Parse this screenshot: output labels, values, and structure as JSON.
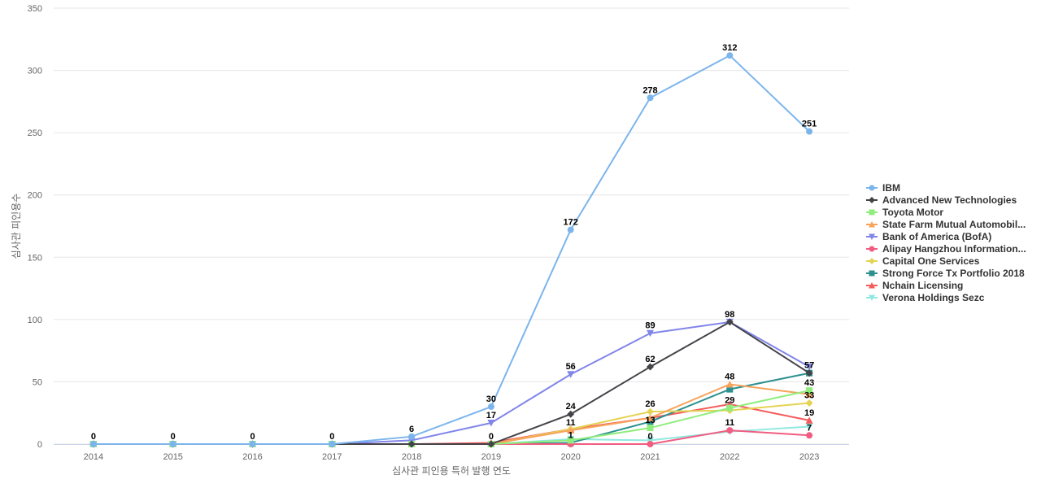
{
  "chart_data": {
    "type": "line",
    "title": "",
    "xlabel": "심사관 피인용 특허 발행 연도",
    "ylabel": "심사관 피인용수",
    "x": [
      "2014",
      "2015",
      "2016",
      "2017",
      "2018",
      "2019",
      "2020",
      "2021",
      "2022",
      "2023"
    ],
    "yticks": [
      0,
      50,
      100,
      150,
      200,
      250,
      300,
      350
    ],
    "ylim": [
      0,
      350
    ],
    "grid": true,
    "legend_position": "right",
    "series": [
      {
        "name": "IBM",
        "color": "#7cb5ec",
        "marker": "circle",
        "values": [
          0,
          0,
          0,
          0,
          6,
          30,
          172,
          278,
          312,
          251
        ],
        "labels": [
          "0",
          "0",
          "0",
          "0",
          "6",
          "30",
          "172",
          "278",
          "312",
          "251"
        ]
      },
      {
        "name": "Advanced New Technologies",
        "color": "#434348",
        "marker": "diamond",
        "values": [
          0,
          0,
          0,
          0,
          0,
          0,
          24,
          62,
          98,
          57
        ],
        "labels": [
          null,
          null,
          null,
          null,
          null,
          null,
          "24",
          "62",
          "98",
          null
        ]
      },
      {
        "name": "Toyota Motor",
        "color": "#90ed7d",
        "marker": "square",
        "values": [
          0,
          0,
          0,
          0,
          0,
          0,
          3,
          13,
          29,
          43
        ],
        "labels": [
          null,
          null,
          null,
          null,
          null,
          null,
          null,
          "13",
          "29",
          "43"
        ]
      },
      {
        "name": "State Farm Mutual Automobil...",
        "color": "#f7a35c",
        "marker": "triangle",
        "values": [
          0,
          0,
          0,
          0,
          0,
          0,
          11,
          21,
          48,
          40
        ],
        "labels": [
          null,
          null,
          null,
          null,
          null,
          null,
          "11",
          null,
          "48",
          null
        ]
      },
      {
        "name": "Bank of America (BofA)",
        "color": "#8085e9",
        "marker": "triangle-down",
        "values": [
          0,
          0,
          0,
          0,
          3,
          17,
          56,
          89,
          98,
          62
        ],
        "labels": [
          null,
          null,
          null,
          null,
          null,
          "17",
          "56",
          "89",
          null,
          null
        ]
      },
      {
        "name": "Alipay Hangzhou Information...",
        "color": "#f15c80",
        "marker": "circle",
        "values": [
          0,
          0,
          0,
          0,
          0,
          0,
          0,
          0,
          11,
          7
        ],
        "labels": [
          null,
          null,
          null,
          null,
          null,
          null,
          null,
          "0",
          "11",
          "7"
        ]
      },
      {
        "name": "Capital One Services",
        "color": "#e4d354",
        "marker": "diamond",
        "values": [
          0,
          0,
          0,
          0,
          0,
          0,
          12,
          26,
          27,
          33
        ],
        "labels": [
          null,
          null,
          null,
          null,
          null,
          null,
          null,
          "26",
          null,
          "33"
        ]
      },
      {
        "name": "Strong Force Tx Portfolio 2018",
        "color": "#2b908f",
        "marker": "square",
        "values": [
          0,
          0,
          0,
          0,
          0,
          0,
          1,
          18,
          44,
          57
        ],
        "labels": [
          null,
          null,
          null,
          null,
          null,
          "0",
          "1",
          null,
          null,
          "57"
        ]
      },
      {
        "name": "Nchain Licensing",
        "color": "#f45b5b",
        "marker": "triangle",
        "values": [
          0,
          0,
          0,
          0,
          0,
          1,
          12,
          21,
          32,
          19
        ],
        "labels": [
          null,
          null,
          null,
          null,
          null,
          null,
          null,
          null,
          null,
          "19"
        ]
      },
      {
        "name": "Verona Holdings Sezc",
        "color": "#91e8e1",
        "marker": "triangle-down",
        "values": [
          0,
          0,
          0,
          0,
          0,
          0,
          4,
          3,
          10,
          14
        ],
        "labels": [
          null,
          null,
          null,
          null,
          null,
          null,
          null,
          null,
          null,
          null
        ]
      }
    ]
  }
}
